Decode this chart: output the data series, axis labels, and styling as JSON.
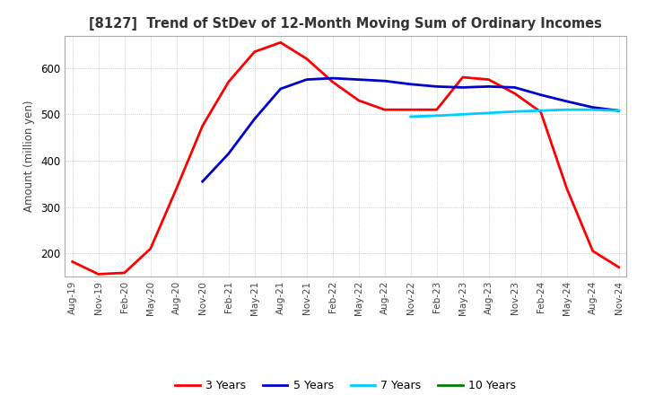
{
  "title": "[8127]  Trend of StDev of 12-Month Moving Sum of Ordinary Incomes",
  "ylabel": "Amount (million yen)",
  "ylim": [
    150,
    670
  ],
  "yticks": [
    200,
    300,
    400,
    500,
    600
  ],
  "legend_labels": [
    "3 Years",
    "5 Years",
    "7 Years",
    "10 Years"
  ],
  "legend_colors": [
    "#ff0000",
    "#0000cc",
    "#00ccff",
    "#008000"
  ],
  "x_labels": [
    "Aug-19",
    "Nov-19",
    "Feb-20",
    "May-20",
    "Aug-20",
    "Nov-20",
    "Feb-21",
    "May-21",
    "Aug-21",
    "Nov-21",
    "Feb-22",
    "May-22",
    "Aug-22",
    "Nov-22",
    "Feb-23",
    "May-23",
    "Aug-23",
    "Nov-23",
    "Feb-24",
    "May-24",
    "Aug-24",
    "Nov-24"
  ],
  "series_3y": [
    182,
    155,
    158,
    210,
    340,
    475,
    570,
    635,
    655,
    620,
    570,
    530,
    510,
    510,
    510,
    580,
    575,
    545,
    505,
    340,
    205,
    170
  ],
  "series_5y": [
    null,
    null,
    null,
    null,
    null,
    355,
    415,
    490,
    555,
    575,
    578,
    575,
    572,
    565,
    560,
    558,
    560,
    558,
    542,
    528,
    515,
    508
  ],
  "series_7y": [
    null,
    null,
    null,
    null,
    null,
    null,
    null,
    null,
    null,
    null,
    null,
    null,
    null,
    495,
    497,
    500,
    503,
    506,
    508,
    510,
    510,
    508
  ],
  "series_10y": [
    null,
    null,
    null,
    null,
    null,
    null,
    null,
    null,
    null,
    null,
    null,
    null,
    null,
    null,
    null,
    null,
    null,
    null,
    null,
    null,
    null,
    null
  ],
  "background_color": "#ffffff",
  "grid_color": "#aaaaaa",
  "title_color": "#333333",
  "title_fontsize": 10.5,
  "line_width": 2.0
}
